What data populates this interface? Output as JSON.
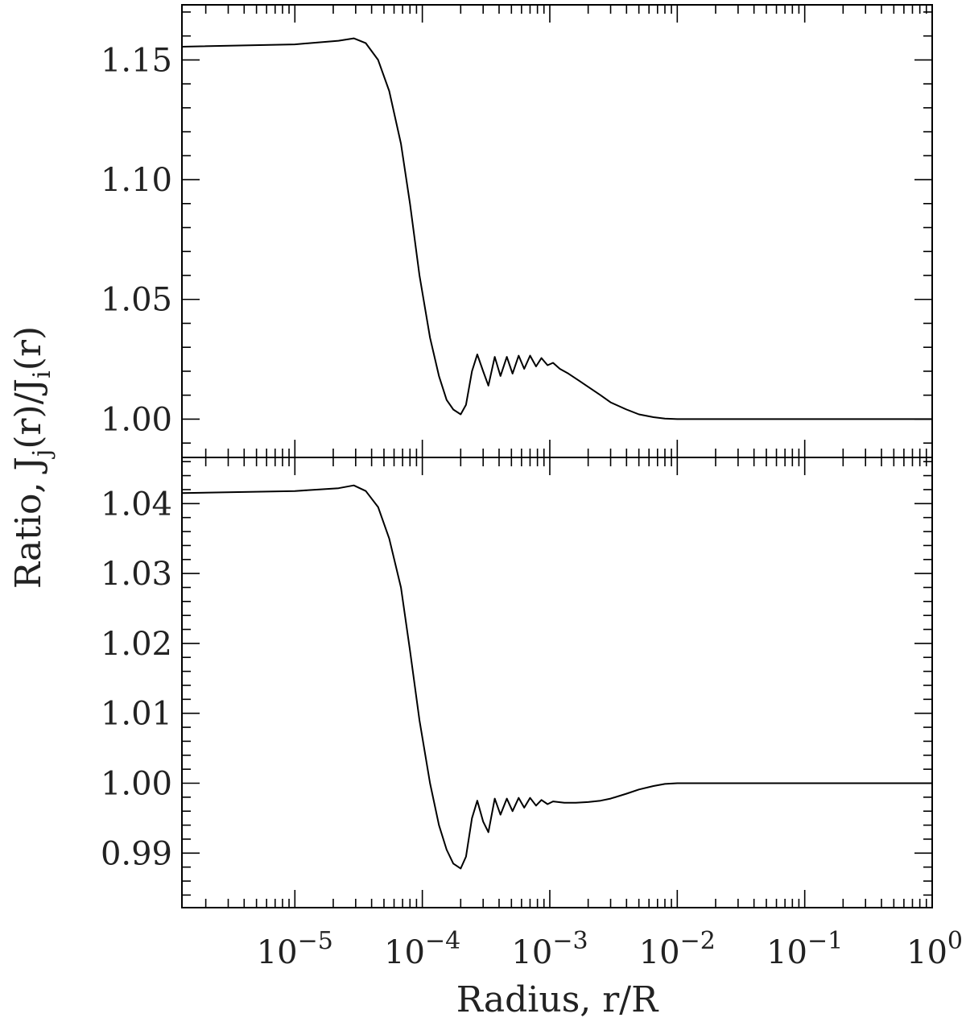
{
  "chart_data": [
    {
      "type": "line",
      "panel": "top",
      "x_scale": "log",
      "xlim": [
        1.3e-06,
        1.0
      ],
      "ylim": [
        0.984,
        1.173
      ],
      "y_ticks": [
        1.0,
        1.05,
        1.1,
        1.15
      ],
      "y_tick_labels": [
        "1.00",
        "1.05",
        "1.10",
        "1.15"
      ],
      "series": [
        {
          "points": [
            [
              1.3e-06,
              1.1555
            ],
            [
              1e-05,
              1.1565
            ],
            [
              2.2e-05,
              1.158
            ],
            [
              2.9e-05,
              1.159
            ],
            [
              3.6e-05,
              1.157
            ],
            [
              4.5e-05,
              1.15
            ],
            [
              5.5e-05,
              1.137
            ],
            [
              6.8e-05,
              1.115
            ],
            [
              8e-05,
              1.09
            ],
            [
              9.5e-05,
              1.06
            ],
            [
              0.000115,
              1.034
            ],
            [
              0.000135,
              1.018
            ],
            [
              0.000155,
              1.008
            ],
            [
              0.000175,
              1.004
            ],
            [
              0.0002,
              1.002
            ],
            [
              0.00022,
              1.006
            ],
            [
              0.000245,
              1.02
            ],
            [
              0.00027,
              1.027
            ],
            [
              0.0003,
              1.02
            ],
            [
              0.00033,
              1.014
            ],
            [
              0.00037,
              1.026
            ],
            [
              0.00041,
              1.018
            ],
            [
              0.00046,
              1.026
            ],
            [
              0.00051,
              1.019
            ],
            [
              0.00057,
              1.0265
            ],
            [
              0.00063,
              1.021
            ],
            [
              0.0007,
              1.0265
            ],
            [
              0.00078,
              1.022
            ],
            [
              0.00086,
              1.0255
            ],
            [
              0.00096,
              1.0225
            ],
            [
              0.00106,
              1.0235
            ],
            [
              0.0012,
              1.021
            ],
            [
              0.0014,
              1.019
            ],
            [
              0.0017,
              1.016
            ],
            [
              0.002,
              1.0135
            ],
            [
              0.0025,
              1.01
            ],
            [
              0.003,
              1.007
            ],
            [
              0.004,
              1.004
            ],
            [
              0.005,
              1.002
            ],
            [
              0.0065,
              1.0008
            ],
            [
              0.008,
              1.0002
            ],
            [
              0.01,
              1.0
            ],
            [
              1.0,
              1.0
            ]
          ]
        }
      ]
    },
    {
      "type": "line",
      "panel": "bottom",
      "x_scale": "log",
      "xlim": [
        1.3e-06,
        1.0
      ],
      "xlabel": "Radius, r/R",
      "ylim": [
        0.9822,
        1.0466
      ],
      "y_ticks": [
        0.99,
        1.0,
        1.01,
        1.02,
        1.03,
        1.04
      ],
      "y_tick_labels": [
        "0.99",
        "1.00",
        "1.01",
        "1.02",
        "1.03",
        "1.04"
      ],
      "x_ticks": [
        1e-05,
        0.0001,
        0.001,
        0.01,
        0.1,
        1
      ],
      "x_tick_labels": [
        {
          "base": "10",
          "exp": "−5"
        },
        {
          "base": "10",
          "exp": "−4"
        },
        {
          "base": "10",
          "exp": "−3"
        },
        {
          "base": "10",
          "exp": "−2"
        },
        {
          "base": "10",
          "exp": "−1"
        },
        {
          "base": "10",
          "exp": "0"
        }
      ],
      "series": [
        {
          "points": [
            [
              1.3e-06,
              1.0415
            ],
            [
              1e-05,
              1.0418
            ],
            [
              2.2e-05,
              1.0422
            ],
            [
              2.9e-05,
              1.0426
            ],
            [
              3.6e-05,
              1.0418
            ],
            [
              4.5e-05,
              1.0395
            ],
            [
              5.5e-05,
              1.035
            ],
            [
              6.8e-05,
              1.028
            ],
            [
              8e-05,
              1.019
            ],
            [
              9.5e-05,
              1.009
            ],
            [
              0.000115,
              1.0
            ],
            [
              0.000135,
              0.994
            ],
            [
              0.000155,
              0.9905
            ],
            [
              0.000175,
              0.9885
            ],
            [
              0.0002,
              0.9878
            ],
            [
              0.00022,
              0.9895
            ],
            [
              0.000245,
              0.995
            ],
            [
              0.00027,
              0.9975
            ],
            [
              0.0003,
              0.9945
            ],
            [
              0.00033,
              0.993
            ],
            [
              0.00037,
              0.9978
            ],
            [
              0.00041,
              0.9955
            ],
            [
              0.00046,
              0.9978
            ],
            [
              0.00051,
              0.996
            ],
            [
              0.00057,
              0.9979
            ],
            [
              0.00063,
              0.9965
            ],
            [
              0.0007,
              0.9979
            ],
            [
              0.00078,
              0.9968
            ],
            [
              0.00086,
              0.9976
            ],
            [
              0.00096,
              0.997
            ],
            [
              0.00106,
              0.9974
            ],
            [
              0.0013,
              0.9972
            ],
            [
              0.0016,
              0.9972
            ],
            [
              0.002,
              0.9973
            ],
            [
              0.0025,
              0.9975
            ],
            [
              0.003,
              0.9978
            ],
            [
              0.004,
              0.9985
            ],
            [
              0.005,
              0.9991
            ],
            [
              0.0065,
              0.9996
            ],
            [
              0.008,
              0.9999
            ],
            [
              0.01,
              1.0
            ],
            [
              1.0,
              1.0
            ]
          ]
        }
      ]
    }
  ],
  "shared_ylabel": {
    "prefix": "Ratio,  J",
    "sub1": "j",
    "mid": "(r)/J",
    "sub2": "i",
    "suffix": "(r)"
  }
}
